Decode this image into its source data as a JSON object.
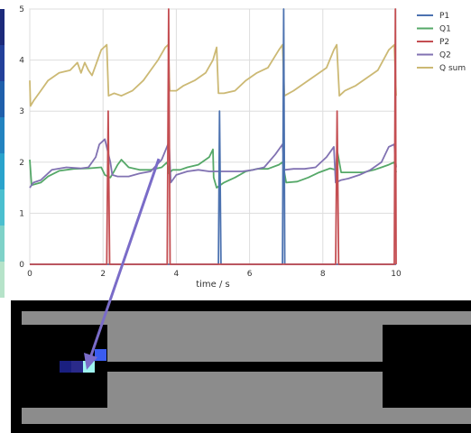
{
  "chart_data": {
    "type": "line",
    "title": "",
    "xlabel": "time / s",
    "ylabel": "",
    "xlim": [
      0,
      10
    ],
    "ylim": [
      0,
      5
    ],
    "xticks": [
      "0",
      "2",
      "4",
      "6",
      "8",
      "10"
    ],
    "yticks": [
      "0",
      "1",
      "2",
      "3",
      "4",
      "5"
    ],
    "grid": true,
    "legend_position": "right",
    "series": [
      {
        "name": "P1",
        "color": "#4c72b0",
        "x": [
          0,
          5.15,
          5.18,
          5.22,
          6.9,
          6.93,
          6.96,
          10
        ],
        "y": [
          0,
          0,
          3.0,
          0,
          0,
          5.0,
          0,
          0
        ]
      },
      {
        "name": "Q1",
        "color": "#55a868",
        "x": [
          0,
          0.05,
          0.3,
          0.5,
          0.8,
          1.2,
          1.6,
          1.95,
          2.05,
          2.2,
          2.3,
          2.4,
          2.5,
          2.7,
          3.0,
          3.3,
          3.6,
          3.75,
          3.8,
          3.9,
          4.1,
          4.3,
          4.6,
          4.9,
          5.0,
          5.02,
          5.1,
          5.3,
          5.6,
          5.9,
          6.2,
          6.5,
          6.8,
          6.9,
          7.0,
          7.3,
          7.6,
          7.9,
          8.2,
          8.35,
          8.4,
          8.5,
          8.8,
          9.1,
          9.4,
          9.6,
          9.8,
          9.95,
          10
        ],
        "y": [
          2.05,
          1.55,
          1.6,
          1.72,
          1.83,
          1.87,
          1.88,
          1.9,
          1.75,
          1.7,
          1.82,
          1.95,
          2.05,
          1.9,
          1.85,
          1.85,
          1.9,
          2.0,
          1.78,
          1.85,
          1.85,
          1.9,
          1.95,
          2.1,
          2.25,
          1.7,
          1.5,
          1.6,
          1.7,
          1.82,
          1.87,
          1.87,
          1.95,
          2.0,
          1.6,
          1.62,
          1.7,
          1.8,
          1.88,
          1.85,
          2.2,
          1.8,
          1.8,
          1.8,
          1.85,
          1.9,
          1.95,
          2.0,
          1.8
        ]
      },
      {
        "name": "P2",
        "color": "#c44e52",
        "x": [
          0,
          2.1,
          2.14,
          2.18,
          3.75,
          3.79,
          3.83,
          8.35,
          8.39,
          8.43,
          9.95,
          9.98,
          10
        ],
        "y": [
          0,
          0,
          3.0,
          0,
          0,
          5.0,
          0,
          0,
          3.0,
          0,
          0,
          5.0,
          0
        ]
      },
      {
        "name": "Q2",
        "color": "#8172b2",
        "x": [
          0,
          0.1,
          0.3,
          0.6,
          1.0,
          1.4,
          1.6,
          1.8,
          1.9,
          2.05,
          2.2,
          2.25,
          2.4,
          2.7,
          3.0,
          3.3,
          3.6,
          3.8,
          3.85,
          4.0,
          4.3,
          4.6,
          4.9,
          5.2,
          5.5,
          5.8,
          6.1,
          6.4,
          6.7,
          6.9,
          6.95,
          7.2,
          7.5,
          7.8,
          8.1,
          8.3,
          8.35,
          8.5,
          8.7,
          9.0,
          9.3,
          9.6,
          9.8,
          9.95,
          10
        ],
        "y": [
          1.5,
          1.6,
          1.65,
          1.85,
          1.9,
          1.88,
          1.9,
          2.1,
          2.35,
          2.45,
          2.0,
          1.75,
          1.72,
          1.72,
          1.78,
          1.82,
          2.05,
          2.4,
          1.6,
          1.75,
          1.82,
          1.85,
          1.82,
          1.82,
          1.82,
          1.82,
          1.85,
          1.9,
          2.15,
          2.35,
          1.85,
          1.87,
          1.87,
          1.9,
          2.1,
          2.3,
          1.6,
          1.65,
          1.68,
          1.75,
          1.85,
          2.0,
          2.3,
          2.35,
          1.9
        ]
      },
      {
        "name": "Q sum",
        "color": "#ccb974",
        "x": [
          0,
          0.02,
          0.1,
          0.3,
          0.5,
          0.8,
          1.1,
          1.3,
          1.4,
          1.5,
          1.6,
          1.7,
          1.8,
          1.95,
          2.1,
          2.15,
          2.3,
          2.5,
          2.8,
          3.1,
          3.3,
          3.5,
          3.7,
          3.78,
          3.82,
          4.0,
          4.2,
          4.5,
          4.8,
          5.0,
          5.1,
          5.15,
          5.3,
          5.6,
          5.9,
          6.2,
          6.5,
          6.8,
          6.9,
          6.95,
          7.2,
          7.5,
          7.8,
          8.1,
          8.3,
          8.38,
          8.45,
          8.6,
          8.9,
          9.2,
          9.5,
          9.8,
          9.95,
          10
        ],
        "y": [
          3.6,
          3.1,
          3.2,
          3.4,
          3.6,
          3.75,
          3.8,
          3.95,
          3.75,
          3.95,
          3.8,
          3.7,
          3.9,
          4.2,
          4.3,
          3.3,
          3.35,
          3.3,
          3.4,
          3.6,
          3.8,
          4.0,
          4.25,
          4.3,
          3.4,
          3.4,
          3.5,
          3.6,
          3.75,
          4.0,
          4.25,
          3.35,
          3.35,
          3.4,
          3.6,
          3.75,
          3.85,
          4.2,
          4.3,
          3.3,
          3.4,
          3.55,
          3.7,
          3.85,
          4.2,
          4.3,
          3.3,
          3.4,
          3.5,
          3.65,
          3.8,
          4.2,
          4.3,
          3.3
        ]
      }
    ]
  },
  "inset": {
    "colorbar_colors": [
      "#1c2a7a",
      "#23409a",
      "#1f5fab",
      "#2383c0",
      "#2aa3cc",
      "#4bbfcf",
      "#7fd2c8",
      "#b6e3c9"
    ],
    "pixel_colors": [
      "#1a1f80",
      "#2a2a8a",
      "#9ff5f0",
      "#3a5cf0"
    ],
    "arrow_color": "#7a6cc8"
  }
}
